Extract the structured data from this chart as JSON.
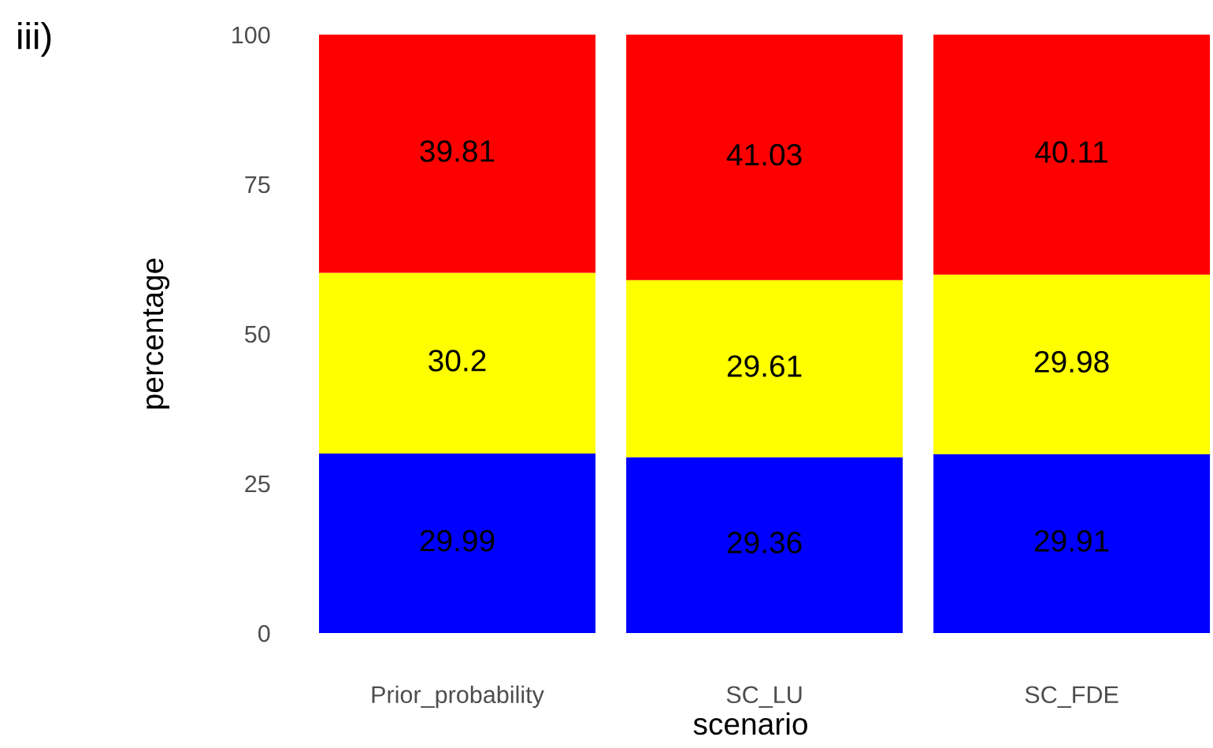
{
  "chart_data": {
    "type": "bar",
    "stacked": true,
    "xlabel": "scenario",
    "ylabel": "percentage",
    "annotations": [
      "iii)"
    ],
    "categories": [
      "Prior_probability",
      "SC_LU",
      "SC_FDE"
    ],
    "series": [
      {
        "color": "#0000ff",
        "values": [
          29.99,
          29.36,
          29.91
        ]
      },
      {
        "color": "#ffff00",
        "values": [
          30.2,
          29.61,
          29.98
        ]
      },
      {
        "color": "#ff0000",
        "values": [
          39.81,
          41.03,
          40.11
        ]
      }
    ],
    "ylim": [
      0,
      100
    ],
    "yticks": [
      0,
      25,
      50,
      75,
      100
    ],
    "grid": false,
    "legend": false,
    "data_labels": true
  }
}
